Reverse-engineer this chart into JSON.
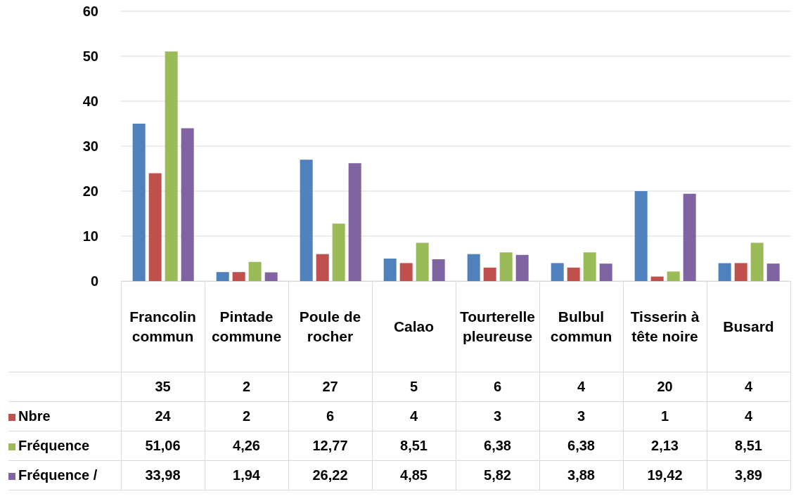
{
  "chart_data": {
    "type": "bar",
    "categories": [
      "Francolin commun",
      "Pintade commune",
      "Poule de rocher",
      "Calao",
      "Tourterelle pleureuse",
      "Bulbul commun",
      "Tisserin à tête noire",
      "Busard"
    ],
    "ylim": [
      0,
      60
    ],
    "yticks": [
      0,
      10,
      20,
      30,
      40,
      50,
      60
    ],
    "grid": "y",
    "legend": "bottom left",
    "series": [
      {
        "color": "#4f81bd",
        "values": [
          35,
          2,
          27,
          5,
          6,
          4,
          20,
          4
        ],
        "value_labels": [
          "35",
          "2",
          "27",
          "5",
          "6",
          "4",
          "20",
          "4"
        ]
      },
      {
        "name": "Nbre",
        "color": "#c0504d",
        "values": [
          24,
          2,
          6,
          4,
          3,
          3,
          1,
          4
        ],
        "value_labels": [
          "24",
          "2",
          "6",
          "4",
          "3",
          "3",
          "1",
          "4"
        ]
      },
      {
        "name": "Fréquence",
        "color": "#9bbb59",
        "values": [
          51.06,
          4.26,
          12.77,
          8.51,
          6.38,
          6.38,
          2.13,
          8.51
        ],
        "value_labels": [
          "51,06",
          "4,26",
          "12,77",
          "8,51",
          "6,38",
          "6,38",
          "2,13",
          "8,51"
        ]
      },
      {
        "name": "Fréquence /",
        "color": "#8064a2",
        "values": [
          33.98,
          1.94,
          26.22,
          4.85,
          5.82,
          3.88,
          19.42,
          3.89
        ],
        "value_labels": [
          "33,98",
          "1,94",
          "26,22",
          "4,85",
          "5,82",
          "3,88",
          "19,42",
          "3,89"
        ]
      }
    ]
  }
}
